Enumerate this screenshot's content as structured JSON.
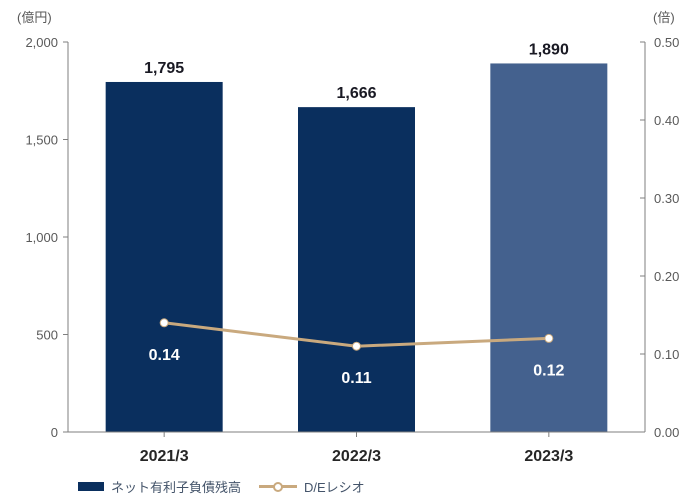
{
  "chart_data": {
    "type": "combo-bar-line",
    "title": "",
    "categories": [
      "2021/3",
      "2022/3",
      "2023/3"
    ],
    "series": [
      {
        "name": "ネット有利子負債残高",
        "type": "bar",
        "axis": "left",
        "values": [
          1795,
          1666,
          1890
        ],
        "value_labels": [
          "1,795",
          "1,666",
          "1,890"
        ],
        "bar_colors": [
          "#0A2F5E",
          "#0A2F5E",
          "#44618E"
        ]
      },
      {
        "name": "D/Eレシオ",
        "type": "line",
        "axis": "right",
        "values": [
          0.14,
          0.11,
          0.12
        ],
        "value_labels": [
          "0.14",
          "0.11",
          "0.12"
        ],
        "line_color": "#C9A97E",
        "marker": "white-circle"
      }
    ],
    "left_axis": {
      "unit_label": "(億円)",
      "min": 0,
      "max": 2000,
      "step": 500,
      "tick_labels": [
        "0",
        "500",
        "1,000",
        "1,500",
        "2,000"
      ]
    },
    "right_axis": {
      "unit_label": "(倍)",
      "min": 0,
      "max": 0.5,
      "step": 0.1,
      "tick_labels": [
        "0.00",
        "0.10",
        "0.20",
        "0.30",
        "0.40",
        "0.50"
      ]
    },
    "legend": {
      "position": "bottom-left",
      "entries": [
        {
          "label": "ネット有利子負債残高",
          "swatch": "bar",
          "color": "#0A2F5E"
        },
        {
          "label": "D/Eレシオ",
          "swatch": "line-marker",
          "color": "#C9A97E"
        }
      ]
    },
    "grid": false
  },
  "colors": {
    "bar_navy": "#0A2F5E",
    "bar_slate": "#44618E",
    "line_tan": "#C9A97E",
    "axis_gray": "#7F7F7F",
    "tick_text_gray": "#595959",
    "x_label_dark": "#262626",
    "bar_label_dark": "#1A1A24",
    "line_label_white": "#FFFFFF"
  }
}
